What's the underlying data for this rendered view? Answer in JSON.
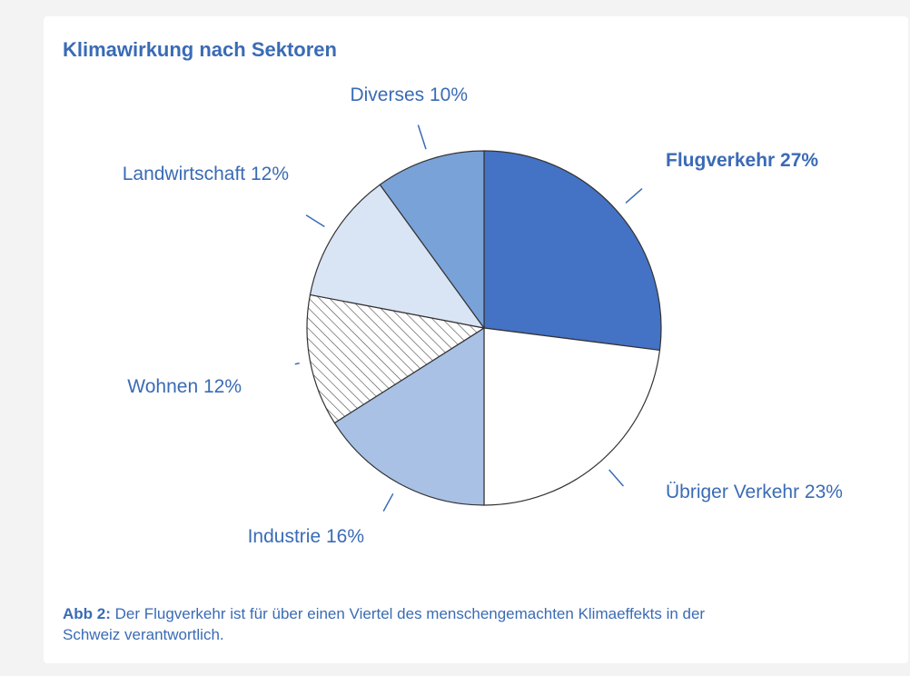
{
  "chart_data": {
    "type": "pie",
    "title": "Klimawirkung nach Sektoren",
    "slices": [
      {
        "name": "Flugverkehr",
        "label": "Flugverkehr 27%",
        "value": 27,
        "color": "#4472c4",
        "bold": true,
        "pattern": "solid"
      },
      {
        "name": "Übriger Verkehr",
        "label": "Übriger Verkehr 23%",
        "value": 23,
        "color": "#ffffff",
        "bold": false,
        "pattern": "solid"
      },
      {
        "name": "Industrie",
        "label": "Industrie 16%",
        "value": 16,
        "color": "#a8c1e5",
        "bold": false,
        "pattern": "solid"
      },
      {
        "name": "Wohnen",
        "label": "Wohnen 12%",
        "value": 12,
        "color": "#ffffff",
        "bold": false,
        "pattern": "hatched"
      },
      {
        "name": "Landwirtschaft",
        "label": "Landwirtschaft 12%",
        "value": 12,
        "color": "#d9e4f4",
        "bold": false,
        "pattern": "solid"
      },
      {
        "name": "Diverses",
        "label": "Diverses 10%",
        "value": 10,
        "color": "#78a2d8",
        "bold": false,
        "pattern": "solid"
      }
    ],
    "start_angle": "12 o'clock",
    "direction": "clockwise",
    "label_color": "#3a6bb5",
    "edge_color": "#333333"
  },
  "caption": {
    "prefix": "Abb 2:",
    "text": " Der Flugverkehr ist für über einen Viertel des menschengemachten Klimaeffekts in der Schweiz verantwortlich."
  }
}
